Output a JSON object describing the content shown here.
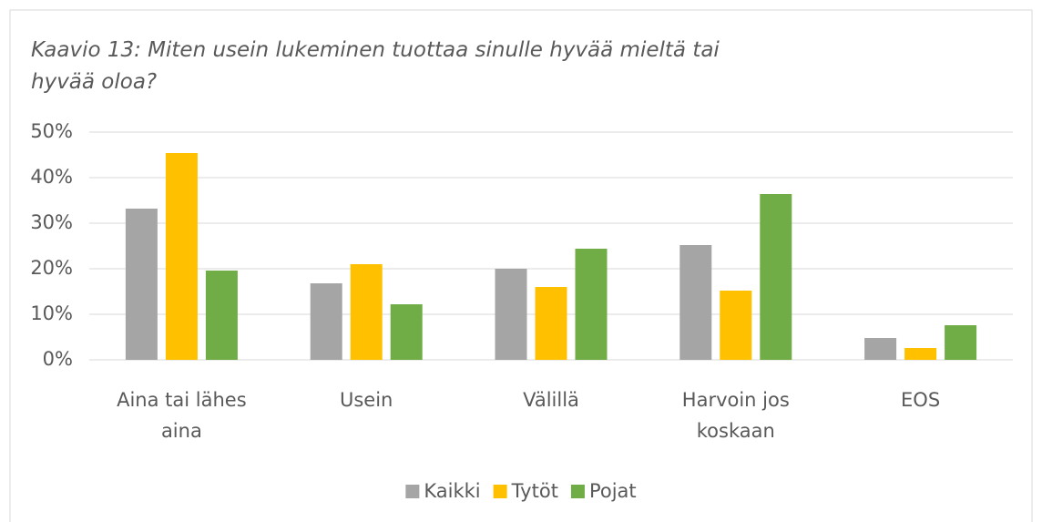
{
  "chart_data": {
    "type": "bar",
    "title": "Kaavio 13: Miten usein lukeminen tuottaa  sinulle hyvää mieltä tai hyvää oloa?",
    "categories": [
      "Aina tai lähes aina",
      "Usein",
      "Välillä",
      "Harvoin jos koskaan",
      "EOS"
    ],
    "series": [
      {
        "name": "Kaikki",
        "color": "#a5a5a5",
        "values": [
          33.2,
          16.8,
          20,
          25.2,
          4.8
        ]
      },
      {
        "name": "Tytöt",
        "color": "#ffc000",
        "values": [
          45.4,
          21,
          16,
          15.2,
          2.6
        ]
      },
      {
        "name": "Pojat",
        "color": "#70ad47",
        "values": [
          19.6,
          12.2,
          24.4,
          36.4,
          7.6
        ]
      }
    ],
    "ylim": [
      0,
      50
    ],
    "yticks": [
      {
        "value": 0,
        "label": "0%"
      },
      {
        "value": 10,
        "label": "10%"
      },
      {
        "value": 20,
        "label": "20%"
      },
      {
        "value": 30,
        "label": "30%"
      },
      {
        "value": 40,
        "label": "40%"
      },
      {
        "value": 50,
        "label": "50%"
      }
    ],
    "grid": true,
    "legend": "bottom"
  }
}
